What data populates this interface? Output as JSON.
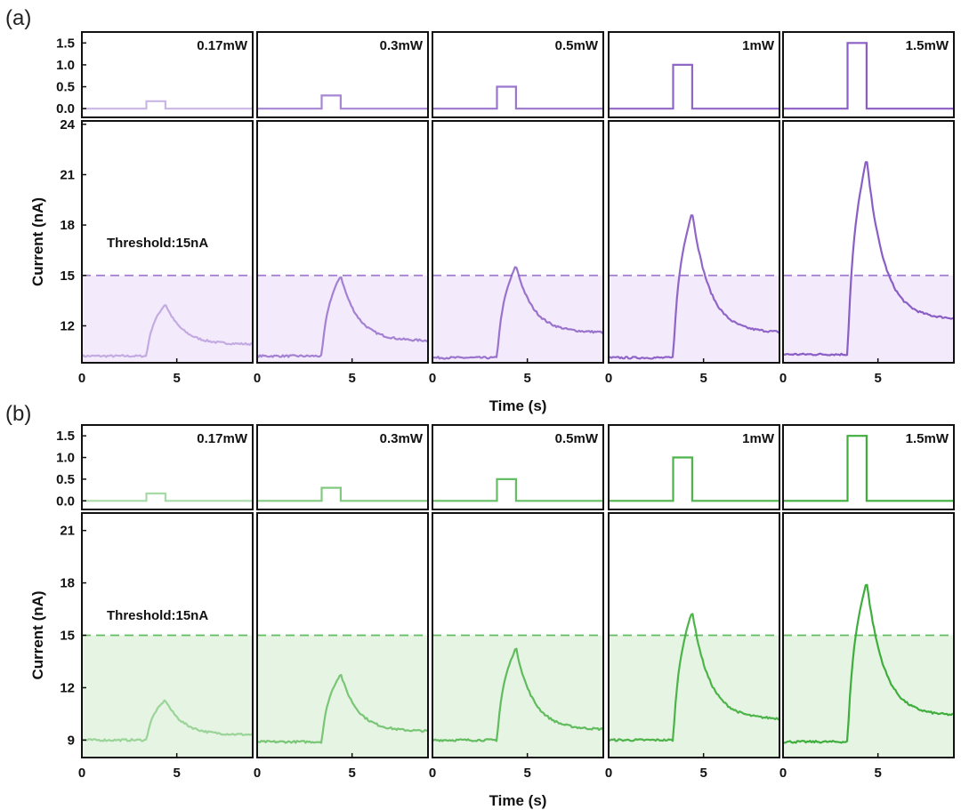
{
  "figure": {
    "colors": {
      "a": "#8a5ec4",
      "b": "#3fae3c",
      "a_fill": "#f3ebfb",
      "b_fill": "#e6f4e3"
    }
  },
  "chart_data": [
    {
      "id": "a",
      "type": "line",
      "panel_label": "(a)",
      "powers": [
        "0.17mW",
        "0.3mW",
        "0.5mW",
        "1mW",
        "1.5mW"
      ],
      "power_values": [
        0.17,
        0.3,
        0.5,
        1.0,
        1.5
      ],
      "pulse": {
        "start": 3.4,
        "end": 4.4
      },
      "top_axis": {
        "ylim": [
          -0.2,
          1.75
        ],
        "yticks": [
          1.5,
          1.0,
          0.5,
          0.0
        ],
        "ytick_labels": [
          "1.5",
          "1.0",
          "0.5",
          "0.0"
        ]
      },
      "ylabel": "Current (nA)",
      "xlabel": "Time (s)",
      "xlim": [
        0,
        9
      ],
      "xticks": [
        0,
        5
      ],
      "ylim": [
        9.8,
        24.2
      ],
      "yticks": [
        24,
        21,
        18,
        15,
        12
      ],
      "threshold": 15,
      "threshold_label": "Threshold:15nA",
      "series": [
        {
          "baseline": 10.2,
          "peak": 13.3,
          "final": 10.9,
          "rise_end": 3.9,
          "decay_end": 9.0,
          "opacity": 0.45
        },
        {
          "baseline": 10.2,
          "peak": 15.0,
          "final": 11.1,
          "rise_end": 3.7,
          "decay_end": 9.0,
          "opacity": 0.75
        },
        {
          "baseline": 10.1,
          "peak": 15.6,
          "final": 11.6,
          "rise_end": 3.7,
          "decay_end": 9.0,
          "opacity": 0.85
        },
        {
          "baseline": 10.1,
          "peak": 18.8,
          "final": 11.6,
          "rise_end": 3.7,
          "decay_end": 9.0,
          "opacity": 0.95
        },
        {
          "baseline": 10.3,
          "peak": 22.0,
          "final": 12.4,
          "rise_end": 3.7,
          "decay_end": 9.0,
          "opacity": 1.0
        }
      ]
    },
    {
      "id": "b",
      "type": "line",
      "panel_label": "(b)",
      "powers": [
        "0.17mW",
        "0.3mW",
        "0.5mW",
        "1mW",
        "1.5mW"
      ],
      "power_values": [
        0.17,
        0.3,
        0.5,
        1.0,
        1.5
      ],
      "pulse": {
        "start": 3.4,
        "end": 4.4
      },
      "top_axis": {
        "ylim": [
          -0.2,
          1.75
        ],
        "yticks": [
          1.5,
          1.0,
          0.5,
          0.0
        ],
        "ytick_labels": [
          "1.5",
          "1.0",
          "0.5",
          "0.0"
        ]
      },
      "ylabel": "Current (nA)",
      "xlabel": "Time (s)",
      "xlim": [
        0,
        9
      ],
      "xticks": [
        0,
        5
      ],
      "ylim": [
        8.0,
        22.0
      ],
      "yticks": [
        21,
        18,
        15,
        12,
        9
      ],
      "threshold": 15,
      "threshold_label": "Threshold:15nA",
      "series": [
        {
          "baseline": 9.0,
          "peak": 11.3,
          "final": 9.3,
          "rise_end": 3.8,
          "decay_end": 9.0,
          "opacity": 0.45
        },
        {
          "baseline": 8.9,
          "peak": 12.8,
          "final": 9.5,
          "rise_end": 3.7,
          "decay_end": 9.0,
          "opacity": 0.65
        },
        {
          "baseline": 9.0,
          "peak": 14.3,
          "final": 9.6,
          "rise_end": 3.7,
          "decay_end": 9.0,
          "opacity": 0.8
        },
        {
          "baseline": 9.0,
          "peak": 16.4,
          "final": 10.2,
          "rise_end": 3.7,
          "decay_end": 9.0,
          "opacity": 0.92
        },
        {
          "baseline": 8.9,
          "peak": 18.1,
          "final": 10.4,
          "rise_end": 3.7,
          "decay_end": 9.0,
          "opacity": 1.0
        }
      ]
    }
  ]
}
